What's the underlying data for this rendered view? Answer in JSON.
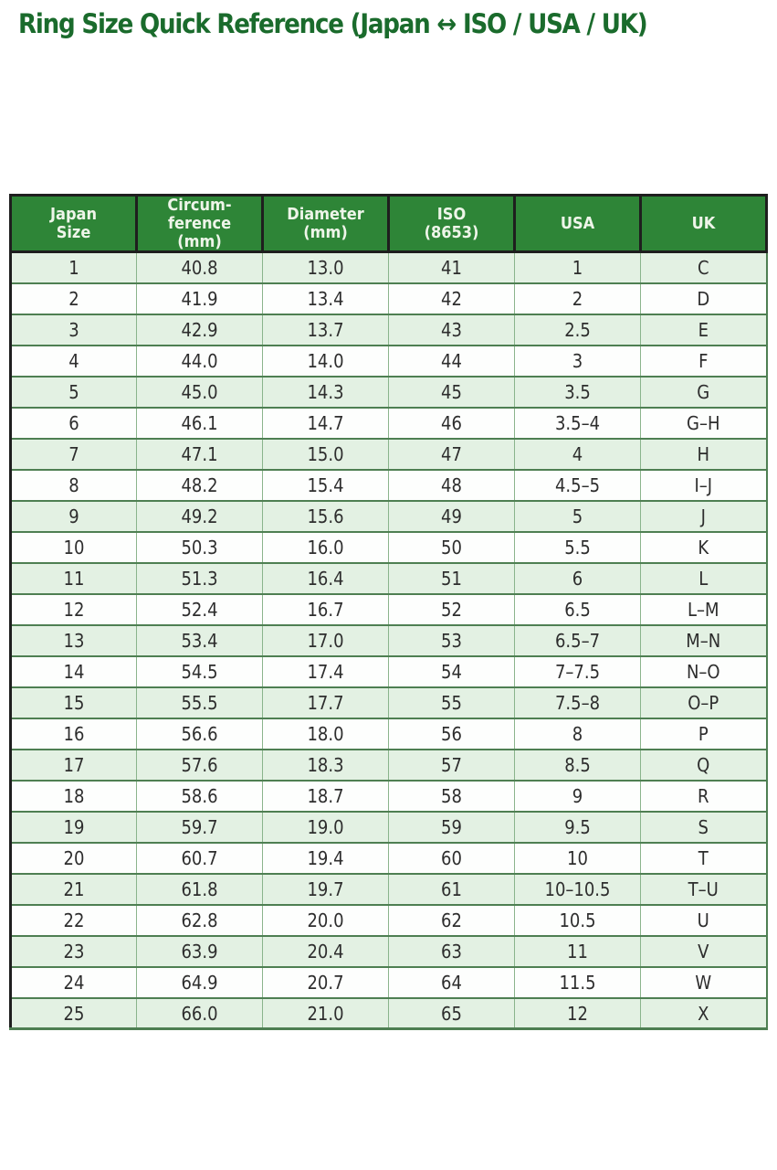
{
  "title": "Ring Size Quick Reference (Japan ↔ ISO / USA / UK)",
  "table": {
    "columns": [
      "Japan\nSize",
      "Circum-\nference\n(mm)",
      "Diameter\n(mm)",
      "ISO\n(8653)",
      "USA",
      "UK"
    ],
    "rows": [
      [
        "1",
        "40.8",
        "13.0",
        "41",
        "1",
        "C"
      ],
      [
        "2",
        "41.9",
        "13.4",
        "42",
        "2",
        "D"
      ],
      [
        "3",
        "42.9",
        "13.7",
        "43",
        "2.5",
        "E"
      ],
      [
        "4",
        "44.0",
        "14.0",
        "44",
        "3",
        "F"
      ],
      [
        "5",
        "45.0",
        "14.3",
        "45",
        "3.5",
        "G"
      ],
      [
        "6",
        "46.1",
        "14.7",
        "46",
        "3.5–4",
        "G–H"
      ],
      [
        "7",
        "47.1",
        "15.0",
        "47",
        "4",
        "H"
      ],
      [
        "8",
        "48.2",
        "15.4",
        "48",
        "4.5–5",
        "I–J"
      ],
      [
        "9",
        "49.2",
        "15.6",
        "49",
        "5",
        "J"
      ],
      [
        "10",
        "50.3",
        "16.0",
        "50",
        "5.5",
        "K"
      ],
      [
        "11",
        "51.3",
        "16.4",
        "51",
        "6",
        "L"
      ],
      [
        "12",
        "52.4",
        "16.7",
        "52",
        "6.5",
        "L–M"
      ],
      [
        "13",
        "53.4",
        "17.0",
        "53",
        "6.5–7",
        "M–N"
      ],
      [
        "14",
        "54.5",
        "17.4",
        "54",
        "7–7.5",
        "N–O"
      ],
      [
        "15",
        "55.5",
        "17.7",
        "55",
        "7.5–8",
        "O–P"
      ],
      [
        "16",
        "56.6",
        "18.0",
        "56",
        "8",
        "P"
      ],
      [
        "17",
        "57.6",
        "18.3",
        "57",
        "8.5",
        "Q"
      ],
      [
        "18",
        "58.6",
        "18.7",
        "58",
        "9",
        "R"
      ],
      [
        "19",
        "59.7",
        "19.0",
        "59",
        "9.5",
        "S"
      ],
      [
        "20",
        "60.7",
        "19.4",
        "60",
        "10",
        "T"
      ],
      [
        "21",
        "61.8",
        "19.7",
        "61",
        "10–10.5",
        "T–U"
      ],
      [
        "22",
        "62.8",
        "20.0",
        "62",
        "10.5",
        "U"
      ],
      [
        "23",
        "63.9",
        "20.4",
        "63",
        "11",
        "V"
      ],
      [
        "24",
        "64.9",
        "20.7",
        "64",
        "11.5",
        "W"
      ],
      [
        "25",
        "66.0",
        "21.0",
        "65",
        "12",
        "X"
      ]
    ]
  },
  "colors": {
    "title": "#1a6b2c",
    "header_bg": "#2e8537",
    "header_text": "#eef5e9",
    "row_green": "#e3f1e3",
    "row_white": "#fdfefd",
    "border_dark": "#1e1e1e",
    "border_row": "#4e7f52",
    "border_col": "#8ab48c",
    "cell_text": "#2d2d2d"
  }
}
